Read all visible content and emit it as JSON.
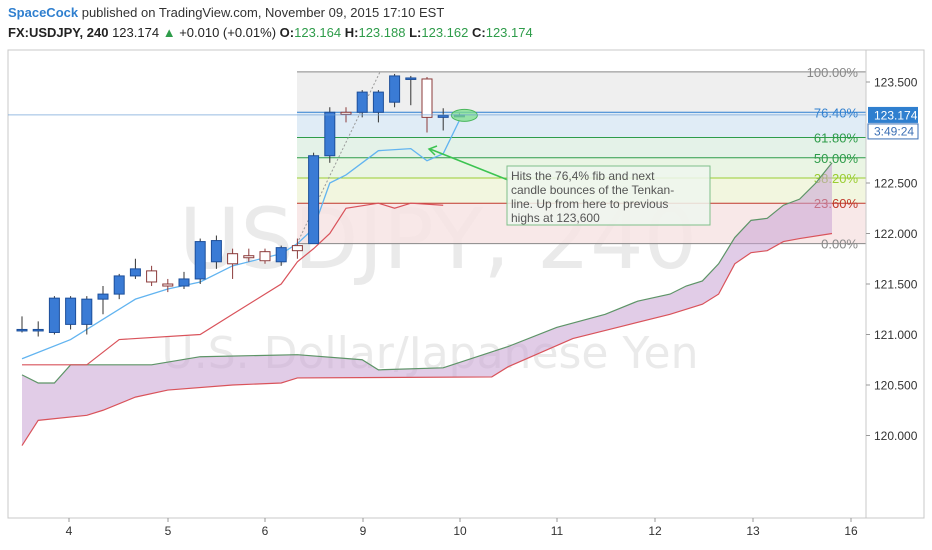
{
  "header": {
    "author": "SpaceCock",
    "published": "published on TradingView.com, November 09, 2015 17:10 EST",
    "symbol": "FX:USDJPY, 240",
    "last": "123.174",
    "change_arrow": "▲",
    "change": "+0.010 (+0.01%)",
    "o_label": "O:",
    "o_value": "123.164",
    "h_label": "H:",
    "h_value": "123.188",
    "l_label": "L:",
    "l_value": "123.162",
    "c_label": "C:",
    "c_value": "123.174"
  },
  "watermark": {
    "line1": "USDJPY, 240",
    "line2": "U.S. Dollar/Japanese Yen"
  },
  "colors": {
    "bull": "#3a7bd5",
    "bear": "#ffffff",
    "bear_border": "#8b3a3a",
    "tenkan": "#62b4f0",
    "kijun": "#d9535b",
    "span_a": "#5d9467",
    "cloud": "#c9a3d3",
    "price_tag": "#2f7fcf",
    "timer_tag": "#3b6fb4"
  },
  "chart_data": {
    "type": "candlestick",
    "title": "USDJPY, 240",
    "ylim": [
      119.75,
      123.75
    ],
    "y_ticks": [
      "120.000",
      "120.500",
      "121.000",
      "121.500",
      "122.000",
      "122.500",
      "123.500"
    ],
    "x_ticks": [
      "4",
      "5",
      "6",
      "9",
      "10",
      "11",
      "12",
      "13",
      "16"
    ],
    "price_label": "123.174",
    "timer_label": "3:49:24",
    "candles": [
      {
        "o": 121.05,
        "h": 121.18,
        "l": 121.02,
        "c": 121.05
      },
      {
        "o": 121.05,
        "h": 121.13,
        "l": 120.98,
        "c": 121.05
      },
      {
        "o": 121.02,
        "h": 121.38,
        "l": 121.0,
        "c": 121.36
      },
      {
        "o": 121.1,
        "h": 121.38,
        "l": 121.05,
        "c": 121.36
      },
      {
        "o": 121.1,
        "h": 121.38,
        "l": 121.0,
        "c": 121.35
      },
      {
        "o": 121.35,
        "h": 121.48,
        "l": 121.2,
        "c": 121.4
      },
      {
        "o": 121.4,
        "h": 121.6,
        "l": 121.35,
        "c": 121.58
      },
      {
        "o": 121.58,
        "h": 121.75,
        "l": 121.55,
        "c": 121.65
      },
      {
        "o": 121.63,
        "h": 121.68,
        "l": 121.48,
        "c": 121.52
      },
      {
        "o": 121.5,
        "h": 121.55,
        "l": 121.42,
        "c": 121.48
      },
      {
        "o": 121.48,
        "h": 121.62,
        "l": 121.45,
        "c": 121.55
      },
      {
        "o": 121.55,
        "h": 121.95,
        "l": 121.5,
        "c": 121.92
      },
      {
        "o": 121.72,
        "h": 121.98,
        "l": 121.65,
        "c": 121.93
      },
      {
        "o": 121.8,
        "h": 121.85,
        "l": 121.55,
        "c": 121.7
      },
      {
        "o": 121.78,
        "h": 121.85,
        "l": 121.72,
        "c": 121.76
      },
      {
        "o": 121.82,
        "h": 121.85,
        "l": 121.7,
        "c": 121.73
      },
      {
        "o": 121.72,
        "h": 121.88,
        "l": 121.68,
        "c": 121.86
      },
      {
        "o": 121.88,
        "h": 121.95,
        "l": 121.75,
        "c": 121.83
      },
      {
        "o": 121.9,
        "h": 122.8,
        "l": 121.9,
        "c": 122.77
      },
      {
        "o": 122.77,
        "h": 123.25,
        "l": 122.7,
        "c": 123.2
      },
      {
        "o": 123.2,
        "h": 123.25,
        "l": 123.1,
        "c": 123.18
      },
      {
        "o": 123.2,
        "h": 123.42,
        "l": 123.15,
        "c": 123.4
      },
      {
        "o": 123.2,
        "h": 123.42,
        "l": 123.1,
        "c": 123.4
      },
      {
        "o": 123.3,
        "h": 123.58,
        "l": 123.25,
        "c": 123.56
      },
      {
        "o": 123.53,
        "h": 123.56,
        "l": 123.27,
        "c": 123.54
      },
      {
        "o": 123.53,
        "h": 123.55,
        "l": 123.0,
        "c": 123.15
      },
      {
        "o": 123.15,
        "h": 123.24,
        "l": 123.02,
        "c": 123.17
      },
      {
        "o": 123.17,
        "h": 123.19,
        "l": 123.16,
        "c": 123.17
      }
    ],
    "tenkan": [
      [
        0,
        120.76
      ],
      [
        3,
        120.95
      ],
      [
        5,
        121.15
      ],
      [
        7,
        121.35
      ],
      [
        9,
        121.45
      ],
      [
        11,
        121.52
      ],
      [
        13,
        121.68
      ],
      [
        16,
        121.8
      ],
      [
        17,
        121.9
      ],
      [
        18,
        122.05
      ],
      [
        19,
        122.5
      ],
      [
        20,
        122.58
      ],
      [
        21,
        122.7
      ],
      [
        22,
        122.82
      ],
      [
        24,
        122.84
      ],
      [
        25,
        122.72
      ],
      [
        26,
        122.79
      ],
      [
        27,
        123.12
      ]
    ],
    "kijun": [
      [
        0,
        120.7
      ],
      [
        4,
        120.7
      ],
      [
        6,
        120.95
      ],
      [
        11,
        121.0
      ],
      [
        13,
        121.2
      ],
      [
        16,
        121.5
      ],
      [
        17,
        121.72
      ],
      [
        18,
        121.85
      ],
      [
        19,
        122.0
      ],
      [
        20,
        122.25
      ],
      [
        22,
        122.3
      ],
      [
        23,
        122.25
      ],
      [
        24,
        122.3
      ],
      [
        26,
        122.28
      ]
    ],
    "span_a": [
      [
        0,
        120.6
      ],
      [
        1,
        120.52
      ],
      [
        2,
        120.52
      ],
      [
        3,
        120.7
      ],
      [
        8,
        120.7
      ],
      [
        11,
        120.78
      ],
      [
        17,
        120.8
      ],
      [
        21,
        120.75
      ],
      [
        22,
        120.65
      ],
      [
        26,
        120.67
      ],
      [
        30,
        120.88
      ],
      [
        33,
        121.07
      ],
      [
        36,
        121.2
      ],
      [
        38,
        121.33
      ],
      [
        40,
        121.4
      ],
      [
        41,
        121.48
      ],
      [
        42,
        121.53
      ],
      [
        43,
        121.7
      ],
      [
        44,
        121.96
      ],
      [
        45,
        122.13
      ],
      [
        46,
        122.15
      ],
      [
        47,
        122.28
      ],
      [
        48,
        122.34
      ],
      [
        49,
        122.5
      ],
      [
        50,
        122.7
      ]
    ],
    "span_b": [
      [
        0,
        119.9
      ],
      [
        1,
        120.15
      ],
      [
        4,
        120.2
      ],
      [
        5,
        120.25
      ],
      [
        7,
        120.38
      ],
      [
        9,
        120.45
      ],
      [
        13,
        120.5
      ],
      [
        16,
        120.52
      ],
      [
        17,
        120.57
      ],
      [
        29,
        120.58
      ],
      [
        30,
        120.68
      ],
      [
        32,
        120.82
      ],
      [
        34,
        120.96
      ],
      [
        37,
        121.08
      ],
      [
        40,
        121.2
      ],
      [
        42,
        121.3
      ],
      [
        43,
        121.4
      ],
      [
        44,
        121.7
      ],
      [
        45,
        121.81
      ],
      [
        46,
        121.83
      ],
      [
        47,
        121.92
      ],
      [
        48,
        121.95
      ],
      [
        50,
        122.0
      ]
    ],
    "fib": {
      "high": 123.6,
      "low": 121.9,
      "levels": [
        {
          "label": "100.00%",
          "value": 123.6,
          "color": "#888888",
          "fill": "#ececec"
        },
        {
          "label": "76.40%",
          "value": 123.2,
          "color": "#2f7fcf",
          "fill": "#dbe9f5"
        },
        {
          "label": "61.80%",
          "value": 122.95,
          "color": "#2e9c4a",
          "fill": "#dff0e4"
        },
        {
          "label": "50.00%",
          "value": 122.75,
          "color": "#2e9c4a",
          "fill": "#e6f3df"
        },
        {
          "label": "38.20%",
          "value": 122.55,
          "color": "#9acd32",
          "fill": "#f0f5d9"
        },
        {
          "label": "23.60%",
          "value": 122.3,
          "color": "#c0392b",
          "fill": "#f7e4e4"
        },
        {
          "label": "0.00%",
          "value": 121.9,
          "color": "#888888",
          "fill": null
        }
      ]
    },
    "annotation": {
      "text_lines": [
        "Hits the 76,4% fib and next",
        "candle bounces of the Tenkan-",
        "line. Up from here to previous",
        "highs at 123,600"
      ]
    }
  }
}
